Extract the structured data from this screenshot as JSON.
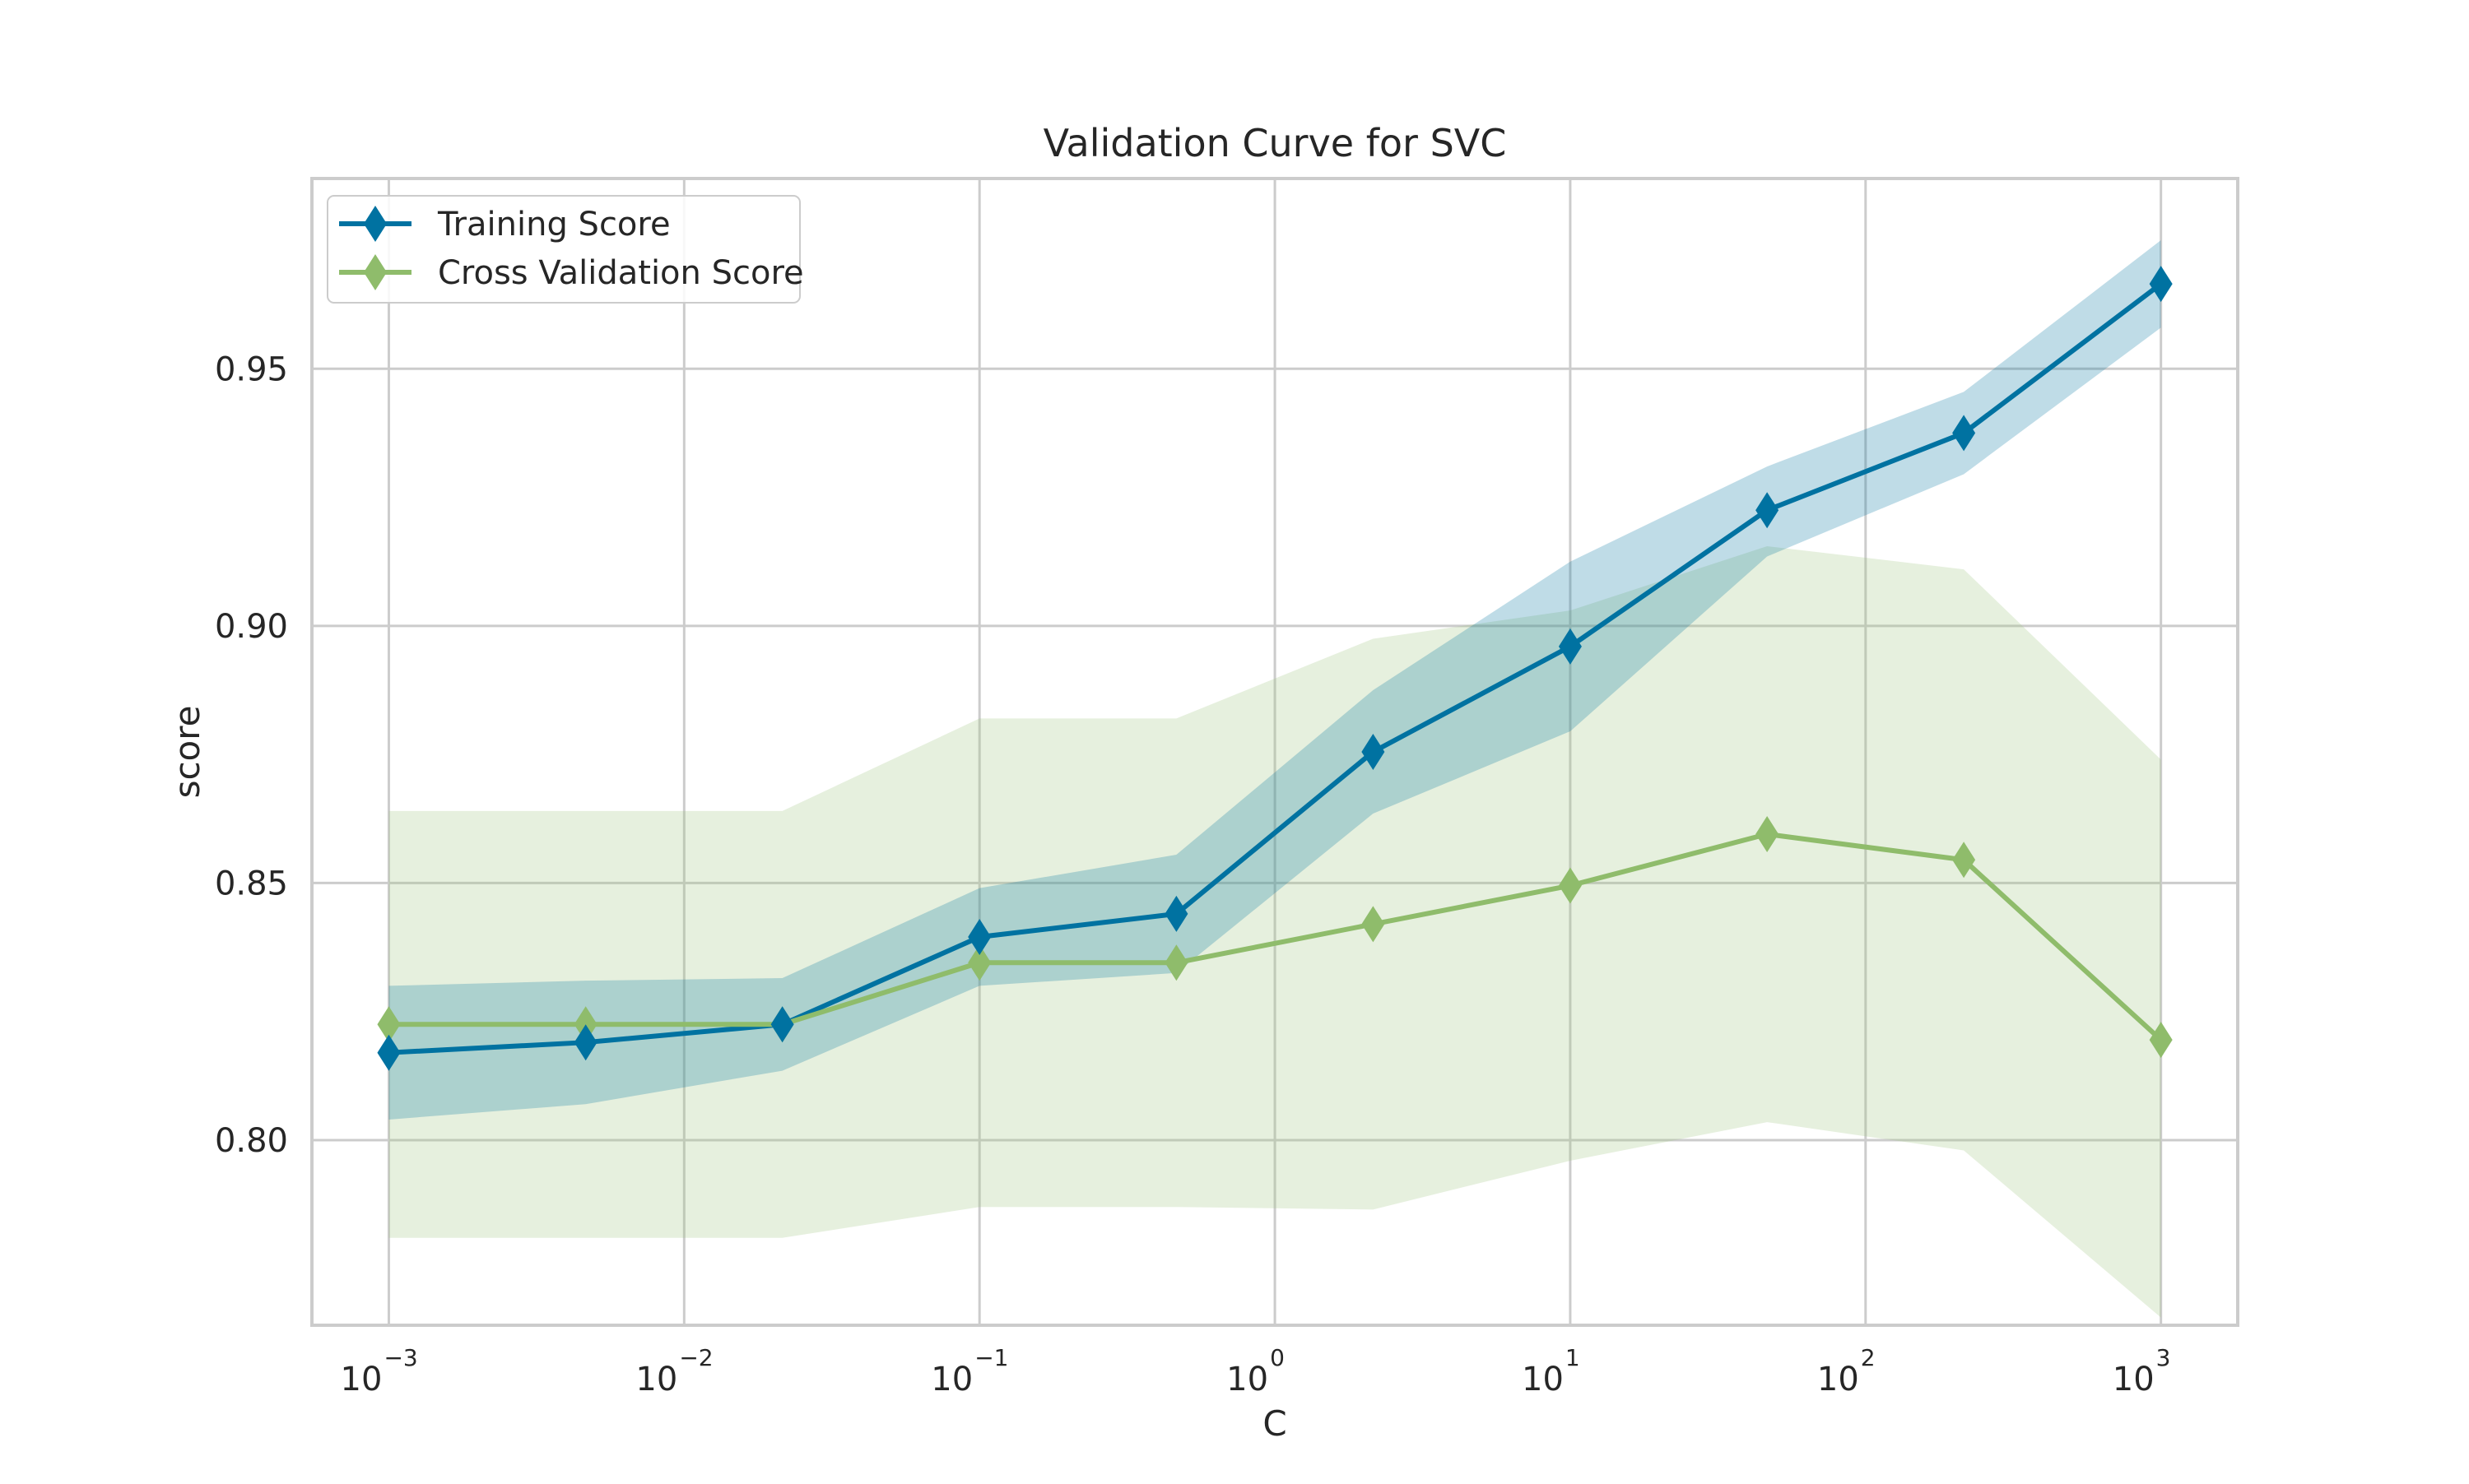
{
  "chart_data": {
    "type": "line",
    "title": "Validation Curve for SVC",
    "xlabel": "C",
    "ylabel": "score",
    "xscale": "log",
    "xlim": [
      0.000549,
      1820
    ],
    "ylim": [
      0.764,
      0.987
    ],
    "grid": true,
    "legend_position": "top-left",
    "x_ticks": [
      {
        "base": "10",
        "exp": "−3",
        "value": 0.001
      },
      {
        "base": "10",
        "exp": "−2",
        "value": 0.01
      },
      {
        "base": "10",
        "exp": "−1",
        "value": 0.1
      },
      {
        "base": "10",
        "exp": "0",
        "value": 1
      },
      {
        "base": "10",
        "exp": "1",
        "value": 10
      },
      {
        "base": "10",
        "exp": "2",
        "value": 100
      },
      {
        "base": "10",
        "exp": "3",
        "value": 1000
      }
    ],
    "y_ticks": [
      {
        "label": "0.80",
        "value": 0.8
      },
      {
        "label": "0.85",
        "value": 0.85
      },
      {
        "label": "0.90",
        "value": 0.9
      },
      {
        "label": "0.95",
        "value": 0.95
      }
    ],
    "x": [
      0.001,
      0.00464,
      0.0215,
      0.1,
      0.464,
      2.15,
      10,
      46.4,
      215,
      1000
    ],
    "series": [
      {
        "name": "Training Score",
        "color": "#0072a1",
        "band_color": "#0072a1",
        "values": [
          0.817,
          0.819,
          0.8225,
          0.8395,
          0.844,
          0.8755,
          0.896,
          0.9225,
          0.9375,
          0.9665
        ],
        "upper": [
          0.83,
          0.831,
          0.8315,
          0.849,
          0.8555,
          0.8875,
          0.9125,
          0.931,
          0.9455,
          0.975
        ],
        "lower": [
          0.804,
          0.807,
          0.8135,
          0.83,
          0.8325,
          0.8635,
          0.8795,
          0.9135,
          0.9295,
          0.958
        ]
      },
      {
        "name": "Cross Validation Score",
        "color": "#8fbc6b",
        "band_color": "#9ac47a",
        "values": [
          0.8225,
          0.8225,
          0.8225,
          0.8345,
          0.8345,
          0.842,
          0.8495,
          0.8595,
          0.8545,
          0.8195
        ],
        "upper": [
          0.864,
          0.864,
          0.864,
          0.882,
          0.882,
          0.8975,
          0.903,
          0.9155,
          0.911,
          0.874
        ],
        "lower": [
          0.781,
          0.781,
          0.781,
          0.787,
          0.787,
          0.7865,
          0.796,
          0.8035,
          0.798,
          0.7655
        ]
      }
    ]
  }
}
